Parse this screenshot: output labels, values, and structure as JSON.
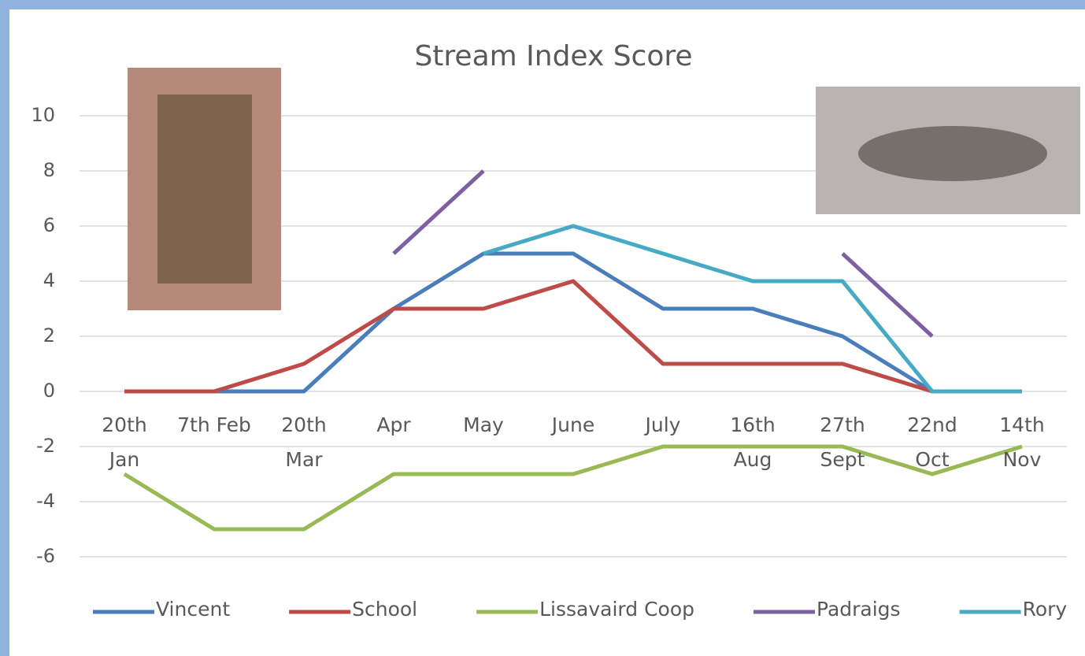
{
  "chart_data": {
    "type": "line",
    "title": "Stream Index Score",
    "categories": [
      "20th\nJan",
      "7th Feb",
      "20th\nMar",
      "Apr",
      "May",
      "June",
      "July",
      "16th\nAug",
      "27th\nSept",
      "22nd\nOct",
      "14th\nNov"
    ],
    "series": [
      {
        "name": "Vincent",
        "color": "#4a7ebb",
        "values": [
          0,
          0,
          0,
          3,
          5,
          5,
          3,
          3,
          2,
          0,
          0
        ]
      },
      {
        "name": "School",
        "color": "#be4b48",
        "values": [
          0,
          0,
          1,
          3,
          3,
          4,
          1,
          1,
          1,
          0,
          null
        ]
      },
      {
        "name": "Lissavaird Coop",
        "color": "#98b954",
        "values": [
          -3,
          -5,
          -5,
          -3,
          -3,
          -3,
          -2,
          -2,
          -2,
          -3,
          -2
        ]
      },
      {
        "name": "Padraigs",
        "color": "#7d60a0",
        "values": [
          null,
          null,
          null,
          5,
          8,
          null,
          null,
          null,
          5,
          2,
          null
        ]
      },
      {
        "name": "Rory",
        "color": "#46aac5",
        "values": [
          null,
          null,
          null,
          null,
          5,
          6,
          5,
          4,
          4,
          0,
          0
        ]
      }
    ],
    "ylim": [
      -6,
      10
    ],
    "yticks": [
      -6,
      -4,
      -2,
      0,
      2,
      4,
      6,
      8,
      10
    ],
    "grid": true,
    "legend": "bottom"
  }
}
